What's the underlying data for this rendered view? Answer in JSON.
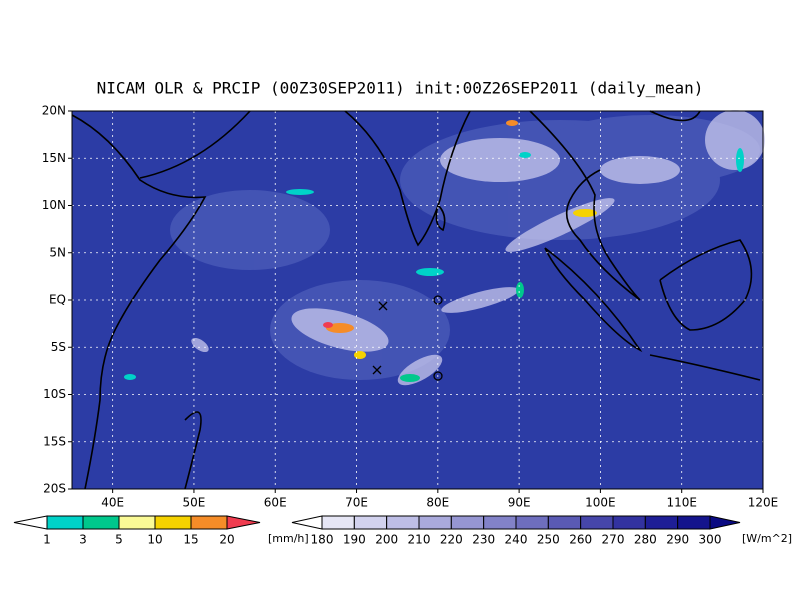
{
  "title": "NICAM OLR & PRCIP (00Z30SEP2011) init:00Z26SEP2011 (daily_mean)",
  "x_axis": {
    "lim": [
      35,
      120
    ],
    "ticks": [
      {
        "value": 40,
        "label": "40E"
      },
      {
        "value": 50,
        "label": "50E"
      },
      {
        "value": 60,
        "label": "60E"
      },
      {
        "value": 70,
        "label": "70E"
      },
      {
        "value": 80,
        "label": "80E"
      },
      {
        "value": 90,
        "label": "90E"
      },
      {
        "value": 100,
        "label": "100E"
      },
      {
        "value": 110,
        "label": "110E"
      },
      {
        "value": 120,
        "label": "120E"
      }
    ]
  },
  "y_axis": {
    "lim": [
      -20,
      20
    ],
    "ticks": [
      {
        "value": -20,
        "label": "20S"
      },
      {
        "value": -15,
        "label": "15S"
      },
      {
        "value": -10,
        "label": "10S"
      },
      {
        "value": -5,
        "label": "5S"
      },
      {
        "value": 0,
        "label": "EQ"
      },
      {
        "value": 5,
        "label": "5N"
      },
      {
        "value": 10,
        "label": "10N"
      },
      {
        "value": 15,
        "label": "15N"
      },
      {
        "value": 20,
        "label": "20N"
      }
    ]
  },
  "colorbars": [
    {
      "levels": [
        1,
        3,
        5,
        10,
        15,
        20
      ],
      "unit": "[mm/h]",
      "colors": [
        "#ffffff",
        "#00d2c8",
        "#00c88c",
        "#fafa96",
        "#f5d200",
        "#f58c28",
        "#f03c50"
      ]
    },
    {
      "levels": [
        180,
        190,
        200,
        210,
        220,
        230,
        240,
        250,
        260,
        270,
        280,
        290,
        300
      ],
      "unit": "[W/m^2]",
      "colors": [
        "#ffffff",
        "#e6e6f5",
        "#d2d2ee",
        "#bebee6",
        "#aaaadc",
        "#9696d2",
        "#8282c8",
        "#6e6ebe",
        "#5a5ab4",
        "#4646aa",
        "#3232a0",
        "#1e1e96",
        "#14148c",
        "#0a0a82"
      ]
    }
  ]
}
